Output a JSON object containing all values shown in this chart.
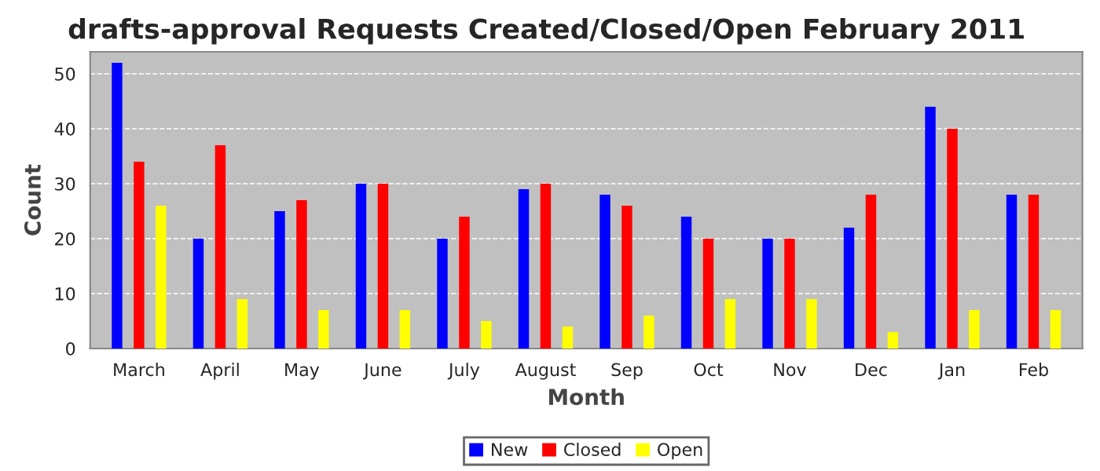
{
  "chart_data": {
    "type": "bar",
    "title": "drafts-approval Requests Created/Closed/Open February 2011",
    "xlabel": "Month",
    "ylabel": "Count",
    "categories": [
      "March",
      "April",
      "May",
      "June",
      "July",
      "August",
      "Sep",
      "Oct",
      "Nov",
      "Dec",
      "Jan",
      "Feb"
    ],
    "series": [
      {
        "name": "New",
        "color": "#0000ff",
        "values": [
          52,
          20,
          25,
          30,
          20,
          29,
          28,
          24,
          20,
          22,
          44,
          28
        ]
      },
      {
        "name": "Closed",
        "color": "#ff0000",
        "values": [
          34,
          37,
          27,
          30,
          24,
          30,
          26,
          20,
          20,
          28,
          40,
          28
        ]
      },
      {
        "name": "Open",
        "color": "#ffff00",
        "values": [
          26,
          9,
          7,
          7,
          5,
          4,
          6,
          9,
          9,
          3,
          7,
          7
        ]
      }
    ],
    "ylim": [
      0,
      54
    ],
    "yticks": [
      0,
      10,
      20,
      30,
      40,
      50
    ],
    "grid": "y",
    "legend": "bottom"
  }
}
